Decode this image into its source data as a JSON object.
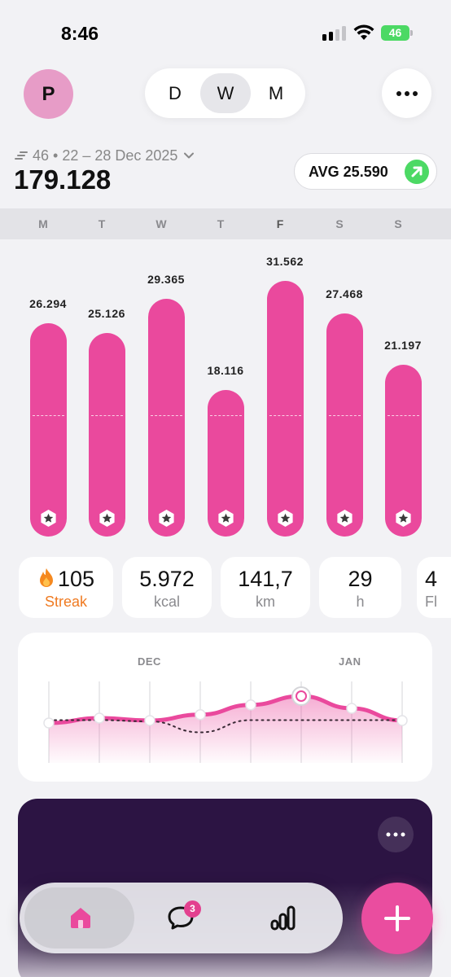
{
  "status": {
    "time": "8:46",
    "battery": "46"
  },
  "header": {
    "avatar_letter": "P",
    "segments": [
      {
        "label": "D",
        "active": false
      },
      {
        "label": "W",
        "active": true
      },
      {
        "label": "M",
        "active": false
      }
    ],
    "more_icon": "more-horizontal-icon"
  },
  "summary": {
    "week_range": "46 • 22 – 28 Dec 2025",
    "total": "179.128",
    "avg_label": "AVG 25.590",
    "trend_icon": "arrow-up-right-icon",
    "trend_color": "#4cd964"
  },
  "days": [
    {
      "label": "M",
      "today": false
    },
    {
      "label": "T",
      "today": false
    },
    {
      "label": "W",
      "today": false
    },
    {
      "label": "T",
      "today": false
    },
    {
      "label": "F",
      "today": true
    },
    {
      "label": "S",
      "today": false
    },
    {
      "label": "S",
      "today": false
    }
  ],
  "chart_data": {
    "type": "bar",
    "categories": [
      "M",
      "T",
      "W",
      "T",
      "F",
      "S",
      "S"
    ],
    "values": [
      26294,
      25126,
      29365,
      18116,
      31562,
      27468,
      21197
    ],
    "value_labels": [
      "26.294",
      "25.126",
      "29.365",
      "18.116",
      "31.562",
      "27.468",
      "21.197"
    ],
    "goal": 15000,
    "ylim": [
      0,
      35000
    ],
    "color": "#ea499d",
    "grid": false
  },
  "stats": [
    {
      "value": "105",
      "label": "Streak",
      "icon": "flame-icon"
    },
    {
      "value": "5.972",
      "label": "kcal"
    },
    {
      "value": "141,7",
      "label": "km"
    },
    {
      "value": "29",
      "label": "h"
    },
    {
      "value": "4",
      "label": "Fl"
    }
  ],
  "trend": {
    "months": [
      "DEC",
      "JAN"
    ],
    "weekly": [
      0.45,
      0.55,
      0.5,
      0.62,
      0.82,
      1.0,
      0.75,
      0.5
    ],
    "baseline": [
      0.05,
      0.05,
      0.02,
      -0.25,
      0.05,
      0.05,
      0.05,
      0.05
    ],
    "selected_index": 5
  },
  "nav": {
    "items": [
      "home-icon",
      "chat-icon",
      "chart-icon"
    ],
    "chat_badge": "3",
    "fab_icon": "plus-icon"
  },
  "colors": {
    "accent": "#ea499d",
    "streak": "#ef7a21",
    "dark_card": "#2c1443"
  }
}
